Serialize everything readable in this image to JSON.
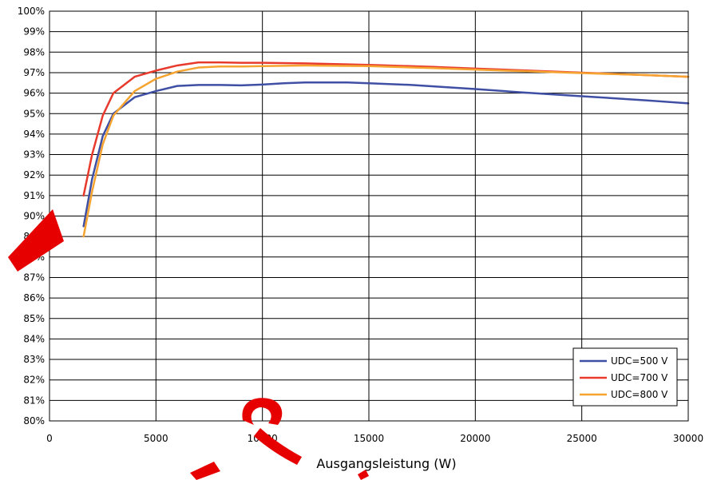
{
  "chart_data": {
    "type": "line",
    "title": "",
    "xlabel": "Ausgangsleistung (W)",
    "ylabel": "",
    "xlim": [
      0,
      30000
    ],
    "ylim": [
      80,
      100
    ],
    "x_ticks": [
      0,
      5000,
      10000,
      15000,
      20000,
      25000,
      30000
    ],
    "x_tick_labels": [
      "0",
      "5000",
      "10000",
      "15000",
      "20000",
      "25000",
      "30000"
    ],
    "y_ticks": [
      80,
      81,
      82,
      83,
      84,
      85,
      86,
      87,
      88,
      89,
      90,
      91,
      92,
      93,
      94,
      95,
      96,
      97,
      98,
      99,
      100
    ],
    "y_tick_labels": [
      "80%",
      "81%",
      "82%",
      "83%",
      "84%",
      "85%",
      "86%",
      "87%",
      "88%",
      "89%",
      "90%",
      "91%",
      "92%",
      "93%",
      "94%",
      "95%",
      "96%",
      "97%",
      "98%",
      "99%",
      "100%"
    ],
    "grid": true,
    "legend_position": "bottom-right",
    "series": [
      {
        "name": "UDC=500 V",
        "color": "#3f4fa3",
        "points": [
          [
            1600,
            89.5
          ],
          [
            2000,
            91.8
          ],
          [
            2500,
            93.9
          ],
          [
            3000,
            95.0
          ],
          [
            4000,
            95.8
          ],
          [
            5000,
            96.1
          ],
          [
            6000,
            96.35
          ],
          [
            7000,
            96.4
          ],
          [
            8000,
            96.4
          ],
          [
            9000,
            96.38
          ],
          [
            10000,
            96.42
          ],
          [
            11000,
            96.48
          ],
          [
            12000,
            96.52
          ],
          [
            13000,
            96.52
          ],
          [
            14000,
            96.52
          ],
          [
            15000,
            96.48
          ],
          [
            17000,
            96.4
          ],
          [
            20000,
            96.2
          ],
          [
            22000,
            96.05
          ],
          [
            25000,
            95.85
          ],
          [
            28000,
            95.65
          ],
          [
            30000,
            95.5
          ]
        ]
      },
      {
        "name": "UDC=700 V",
        "color": "#e83a2c",
        "points": [
          [
            1600,
            91.0
          ],
          [
            2000,
            93.0
          ],
          [
            2500,
            94.9
          ],
          [
            3000,
            96.0
          ],
          [
            4000,
            96.8
          ],
          [
            5000,
            97.1
          ],
          [
            6000,
            97.35
          ],
          [
            7000,
            97.5
          ],
          [
            8000,
            97.5
          ],
          [
            9000,
            97.48
          ],
          [
            10000,
            97.48
          ],
          [
            12000,
            97.45
          ],
          [
            15000,
            97.38
          ],
          [
            18000,
            97.28
          ],
          [
            20000,
            97.2
          ],
          [
            22000,
            97.12
          ],
          [
            25000,
            97.0
          ],
          [
            28000,
            96.88
          ],
          [
            30000,
            96.8
          ]
        ]
      },
      {
        "name": "UDC=800 V",
        "color": "#f5a431",
        "points": [
          [
            1600,
            89.0
          ],
          [
            2000,
            91.2
          ],
          [
            2500,
            93.5
          ],
          [
            3000,
            94.9
          ],
          [
            4000,
            96.1
          ],
          [
            5000,
            96.7
          ],
          [
            6000,
            97.05
          ],
          [
            7000,
            97.25
          ],
          [
            8000,
            97.3
          ],
          [
            9000,
            97.3
          ],
          [
            10000,
            97.32
          ],
          [
            12000,
            97.35
          ],
          [
            15000,
            97.32
          ],
          [
            18000,
            97.22
          ],
          [
            20000,
            97.15
          ],
          [
            22000,
            97.08
          ],
          [
            25000,
            96.98
          ],
          [
            28000,
            96.88
          ],
          [
            30000,
            96.8
          ]
        ]
      }
    ]
  }
}
